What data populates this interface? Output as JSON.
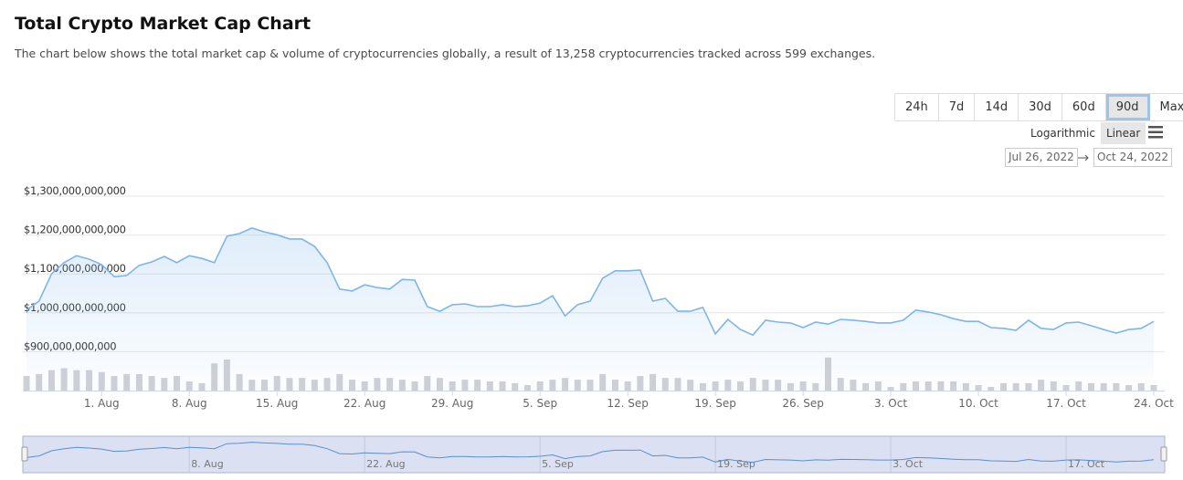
{
  "header": {
    "title": "Total Crypto Market Cap Chart",
    "description": "The chart below shows the total market cap & volume of cryptocurrencies globally, a result of 13,258 cryptocurrencies tracked across 599 exchanges."
  },
  "controls": {
    "ranges": [
      "24h",
      "7d",
      "14d",
      "30d",
      "60d",
      "90d",
      "Max"
    ],
    "selected_range": 5,
    "scales": [
      "Logarithmic",
      "Linear"
    ],
    "selected_scale": 1,
    "from": "Jul 26, 2022",
    "to": "Oct 24, 2022"
  },
  "chart_data": {
    "type": "line",
    "log_scale": false,
    "grid": true,
    "x": [
      "2022-07-26",
      "2022-07-27",
      "2022-07-28",
      "2022-07-29",
      "2022-07-30",
      "2022-07-31",
      "2022-08-01",
      "2022-08-02",
      "2022-08-03",
      "2022-08-04",
      "2022-08-05",
      "2022-08-06",
      "2022-08-07",
      "2022-08-08",
      "2022-08-09",
      "2022-08-10",
      "2022-08-11",
      "2022-08-12",
      "2022-08-13",
      "2022-08-14",
      "2022-08-15",
      "2022-08-16",
      "2022-08-17",
      "2022-08-18",
      "2022-08-19",
      "2022-08-20",
      "2022-08-21",
      "2022-08-22",
      "2022-08-23",
      "2022-08-24",
      "2022-08-25",
      "2022-08-26",
      "2022-08-27",
      "2022-08-28",
      "2022-08-29",
      "2022-08-30",
      "2022-08-31",
      "2022-09-01",
      "2022-09-02",
      "2022-09-03",
      "2022-09-04",
      "2022-09-05",
      "2022-09-06",
      "2022-09-07",
      "2022-09-08",
      "2022-09-09",
      "2022-09-10",
      "2022-09-11",
      "2022-09-12",
      "2022-09-13",
      "2022-09-14",
      "2022-09-15",
      "2022-09-16",
      "2022-09-17",
      "2022-09-18",
      "2022-09-19",
      "2022-09-20",
      "2022-09-21",
      "2022-09-22",
      "2022-09-23",
      "2022-09-24",
      "2022-09-25",
      "2022-09-26",
      "2022-09-27",
      "2022-09-28",
      "2022-09-29",
      "2022-09-30",
      "2022-10-01",
      "2022-10-02",
      "2022-10-03",
      "2022-10-04",
      "2022-10-05",
      "2022-10-06",
      "2022-10-07",
      "2022-10-08",
      "2022-10-09",
      "2022-10-10",
      "2022-10-11",
      "2022-10-12",
      "2022-10-13",
      "2022-10-14",
      "2022-10-15",
      "2022-10-16",
      "2022-10-17",
      "2022-10-18",
      "2022-10-19",
      "2022-10-20",
      "2022-10-21",
      "2022-10-22",
      "2022-10-23",
      "2022-10-24"
    ],
    "xlim": [
      "2022-07-26",
      "2022-10-24"
    ],
    "xticks": [
      {
        "value": "2022-08-01",
        "label": "1. Aug"
      },
      {
        "value": "2022-08-08",
        "label": "8. Aug"
      },
      {
        "value": "2022-08-15",
        "label": "15. Aug"
      },
      {
        "value": "2022-08-22",
        "label": "22. Aug"
      },
      {
        "value": "2022-08-29",
        "label": "29. Aug"
      },
      {
        "value": "2022-09-05",
        "label": "5. Sep"
      },
      {
        "value": "2022-09-12",
        "label": "12. Sep"
      },
      {
        "value": "2022-09-19",
        "label": "19. Sep"
      },
      {
        "value": "2022-09-26",
        "label": "26. Sep"
      },
      {
        "value": "2022-10-03",
        "label": "3. Oct"
      },
      {
        "value": "2022-10-10",
        "label": "10. Oct"
      },
      {
        "value": "2022-10-17",
        "label": "17. Oct"
      },
      {
        "value": "2022-10-24",
        "label": "24. Oct"
      }
    ],
    "ylim": [
      800000000000,
      1300000000000
    ],
    "yticks": [
      {
        "value": 900000000000,
        "label": "$900,000,000,000"
      },
      {
        "value": 1000000000000,
        "label": "$1,000,000,000,000"
      },
      {
        "value": 1100000000000,
        "label": "$1,100,000,000,000"
      },
      {
        "value": 1200000000000,
        "label": "$1,200,000,000,000"
      },
      {
        "value": 1300000000000,
        "label": "$1,300,000,000,000"
      }
    ],
    "y2lim": [
      0,
      1000000000000
    ],
    "series": [
      {
        "type": "line",
        "color": "#7cb5ec",
        "values": [
          1007000000000,
          1030000000000,
          1100000000000,
          1129000000000,
          1147000000000,
          1138000000000,
          1124000000000,
          1093000000000,
          1096000000000,
          1122000000000,
          1131000000000,
          1145000000000,
          1129000000000,
          1147000000000,
          1140000000000,
          1129000000000,
          1197000000000,
          1204000000000,
          1218000000000,
          1208000000000,
          1201000000000,
          1190000000000,
          1190000000000,
          1171000000000,
          1129000000000,
          1061000000000,
          1056000000000,
          1072000000000,
          1065000000000,
          1061000000000,
          1086000000000,
          1084000000000,
          1016000000000,
          1004000000000,
          1021000000000,
          1023000000000,
          1016000000000,
          1016000000000,
          1021000000000,
          1016000000000,
          1018000000000,
          1025000000000,
          1044000000000,
          992000000000,
          1021000000000,
          1030000000000,
          1089000000000,
          1108000000000,
          1108000000000,
          1110000000000,
          1030000000000,
          1037000000000,
          1004000000000,
          1004000000000,
          1014000000000,
          946000000000,
          983000000000,
          957000000000,
          943000000000,
          981000000000,
          976000000000,
          974000000000,
          962000000000,
          976000000000,
          971000000000,
          983000000000,
          981000000000,
          978000000000,
          974000000000,
          974000000000,
          981000000000,
          1007000000000,
          1002000000000,
          995000000000,
          985000000000,
          978000000000,
          978000000000,
          962000000000,
          960000000000,
          955000000000,
          981000000000,
          960000000000,
          957000000000,
          974000000000,
          976000000000,
          967000000000,
          957000000000,
          948000000000,
          957000000000,
          960000000000,
          978000000000
        ]
      },
      {
        "type": "bar",
        "axis": "y2",
        "color": "#cfd0d6",
        "values": [
          75000000000,
          85000000000,
          105000000000,
          115000000000,
          105000000000,
          105000000000,
          95000000000,
          75000000000,
          85000000000,
          85000000000,
          75000000000,
          65000000000,
          75000000000,
          47000000000,
          38000000000,
          140000000000,
          160000000000,
          85000000000,
          56000000000,
          56000000000,
          75000000000,
          65000000000,
          65000000000,
          56000000000,
          65000000000,
          85000000000,
          56000000000,
          47000000000,
          65000000000,
          65000000000,
          56000000000,
          47000000000,
          75000000000,
          65000000000,
          47000000000,
          56000000000,
          56000000000,
          47000000000,
          47000000000,
          38000000000,
          28000000000,
          47000000000,
          56000000000,
          65000000000,
          56000000000,
          56000000000,
          85000000000,
          56000000000,
          47000000000,
          75000000000,
          85000000000,
          65000000000,
          65000000000,
          56000000000,
          38000000000,
          47000000000,
          56000000000,
          47000000000,
          65000000000,
          56000000000,
          56000000000,
          38000000000,
          47000000000,
          38000000000,
          170000000000,
          65000000000,
          56000000000,
          38000000000,
          47000000000,
          19000000000,
          38000000000,
          47000000000,
          47000000000,
          47000000000,
          47000000000,
          38000000000,
          28000000000,
          19000000000,
          38000000000,
          38000000000,
          38000000000,
          56000000000,
          47000000000,
          28000000000,
          47000000000,
          38000000000,
          38000000000,
          38000000000,
          28000000000,
          38000000000,
          28000000000
        ]
      }
    ],
    "navigator": {
      "xticks": [
        {
          "value": "2022-08-08",
          "label": "8. Aug"
        },
        {
          "value": "2022-08-22",
          "label": "22. Aug"
        },
        {
          "value": "2022-09-05",
          "label": "5. Sep"
        },
        {
          "value": "2022-09-19",
          "label": "19. Sep"
        },
        {
          "value": "2022-10-03",
          "label": "3. Oct"
        },
        {
          "value": "2022-10-17",
          "label": "17. Oct"
        }
      ]
    }
  }
}
